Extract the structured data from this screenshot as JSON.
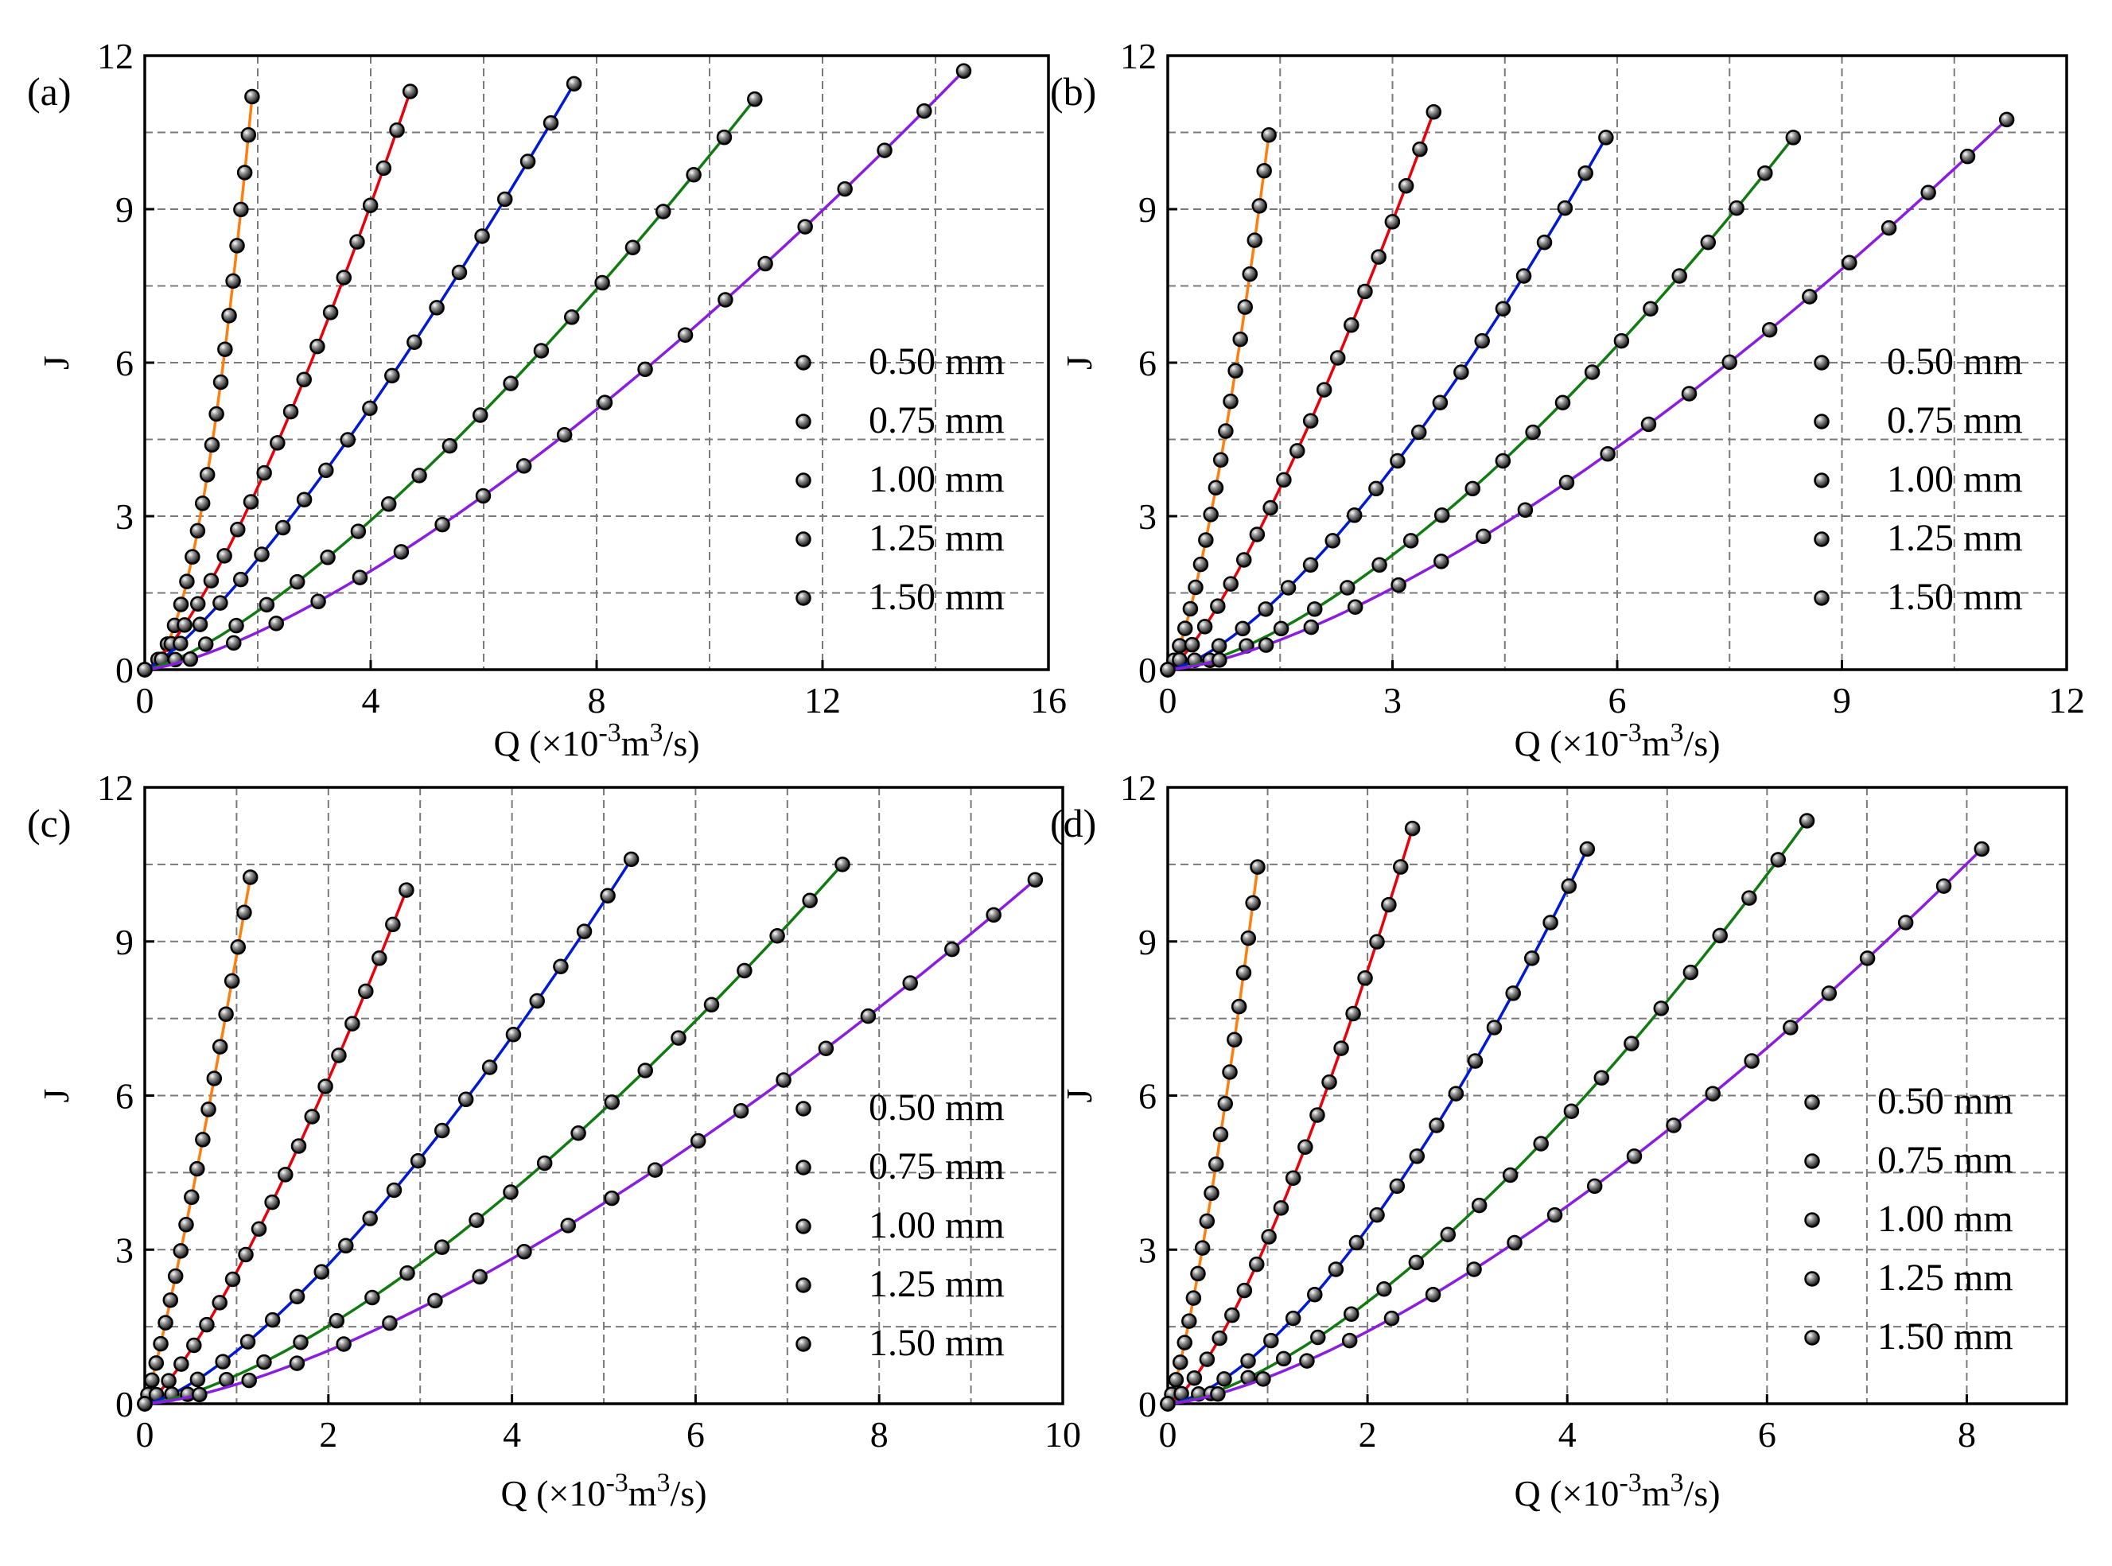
{
  "figure_title": "",
  "chart_data": [
    {
      "type": "line",
      "panel_label": "(a)",
      "title": "",
      "xlabel": "Q (×10-3m3/s)",
      "xlabel_parts": {
        "symbol": "Q (",
        "times": "×10",
        "exp1": "-3",
        "unit": "m",
        "exp2": "3",
        "tail": "/s)"
      },
      "ylabel": "J",
      "xlim": [
        0,
        16
      ],
      "ylim": [
        0,
        12
      ],
      "xticks": [
        0,
        4,
        8,
        12,
        16
      ],
      "yticks": [
        0,
        3,
        6,
        9,
        12
      ],
      "xticks_labels": [
        "0",
        "4",
        "8",
        "12",
        "16"
      ],
      "yticks_labels": [
        "0",
        "3",
        "6",
        "9",
        "12"
      ],
      "grid": true,
      "legend_position": "right",
      "legend": [
        "0.50 mm",
        "0.75 mm",
        "1.00 mm",
        "1.25 mm",
        "1.50 mm"
      ],
      "series": [
        {
          "name": "0.50 mm",
          "color": "#ff7f0e",
          "x_max": 1.9,
          "y_max": 11.2,
          "n": 2.0
        },
        {
          "name": "0.75 mm",
          "color": "#e8000b",
          "x_max": 4.7,
          "y_max": 11.3,
          "n": 1.35
        },
        {
          "name": "1.00 mm",
          "color": "#0019d6",
          "x_max": 7.6,
          "y_max": 11.45,
          "n": 1.25
        },
        {
          "name": "1.25 mm",
          "color": "#117a11",
          "x_max": 10.8,
          "y_max": 11.15,
          "n": 1.35
        },
        {
          "name": "1.50 mm",
          "color": "#8a1ee0",
          "x_max": 14.5,
          "y_max": 11.7,
          "n": 1.4
        }
      ]
    },
    {
      "type": "line",
      "panel_label": "(b)",
      "title": "",
      "xlabel": "Q (×10-3m3/s)",
      "xlabel_parts": {
        "symbol": "Q (",
        "times": "×10",
        "exp1": "-3",
        "unit": "m",
        "exp2": "3",
        "tail": "/s)"
      },
      "ylabel": "J",
      "xlim": [
        0,
        12
      ],
      "ylim": [
        0,
        12
      ],
      "xticks": [
        0,
        3,
        6,
        9,
        12
      ],
      "yticks": [
        0,
        3,
        6,
        9,
        12
      ],
      "xticks_labels": [
        "0",
        "3",
        "6",
        "9",
        "12"
      ],
      "yticks_labels": [
        "0",
        "3",
        "6",
        "9",
        "12"
      ],
      "grid": true,
      "legend_position": "right",
      "legend": [
        "0.50 mm",
        "0.75 mm",
        "1.00 mm",
        "1.25 mm",
        "1.50 mm"
      ],
      "series": [
        {
          "name": "0.50 mm",
          "color": "#ff7f0e",
          "x_max": 1.35,
          "y_max": 10.45,
          "n": 1.45
        },
        {
          "name": "0.75 mm",
          "color": "#e8000b",
          "x_max": 3.55,
          "y_max": 10.9,
          "n": 1.3
        },
        {
          "name": "1.00 mm",
          "color": "#0019d6",
          "x_max": 5.85,
          "y_max": 10.4,
          "n": 1.45
        },
        {
          "name": "1.25 mm",
          "color": "#117a11",
          "x_max": 8.35,
          "y_max": 10.4,
          "n": 1.5
        },
        {
          "name": "1.50 mm",
          "color": "#8a1ee0",
          "x_max": 11.2,
          "y_max": 10.75,
          "n": 1.45
        }
      ]
    },
    {
      "type": "line",
      "panel_label": "(c)",
      "title": "",
      "xlabel": "Q (×10-3m3/s)",
      "xlabel_parts": {
        "symbol": "Q (",
        "times": "×10",
        "exp1": "-3",
        "unit": "m",
        "exp2": "3",
        "tail": "/s)"
      },
      "ylabel": "J",
      "xlim": [
        0,
        10
      ],
      "ylim": [
        0,
        12
      ],
      "xticks": [
        0,
        2,
        4,
        6,
        8,
        10
      ],
      "yticks": [
        0,
        3,
        6,
        9,
        12
      ],
      "xticks_labels": [
        "0",
        "2",
        "4",
        "6",
        "8",
        "10"
      ],
      "yticks_labels": [
        "0",
        "3",
        "6",
        "9",
        "12"
      ],
      "grid": true,
      "legend_position": "right",
      "legend": [
        "0.50 mm",
        "0.75 mm",
        "1.00 mm",
        "1.25 mm",
        "1.50 mm"
      ],
      "series": [
        {
          "name": "0.50 mm",
          "color": "#ff7f0e",
          "x_max": 1.15,
          "y_max": 10.25,
          "n": 1.15
        },
        {
          "name": "0.75 mm",
          "color": "#e8000b",
          "x_max": 2.85,
          "y_max": 10.0,
          "n": 1.3
        },
        {
          "name": "1.00 mm",
          "color": "#0019d6",
          "x_max": 5.3,
          "y_max": 10.6,
          "n": 1.4
        },
        {
          "name": "1.25 mm",
          "color": "#117a11",
          "x_max": 7.6,
          "y_max": 10.5,
          "n": 1.45
        },
        {
          "name": "1.50 mm",
          "color": "#8a1ee0",
          "x_max": 9.7,
          "y_max": 10.2,
          "n": 1.45
        }
      ]
    },
    {
      "type": "line",
      "panel_label": "(d)",
      "title": "",
      "xlabel": "Q (×10-3m3/s)",
      "xlabel_parts": {
        "symbol": "Q (",
        "times": "×10",
        "exp1": "-3",
        "unit": "m",
        "exp2": "3",
        "tail": "/s)"
      },
      "ylabel": "J",
      "xlim": [
        0,
        9
      ],
      "ylim": [
        0,
        12
      ],
      "xticks": [
        0,
        2,
        4,
        6,
        8
      ],
      "yticks": [
        0,
        3,
        6,
        9,
        12
      ],
      "xticks_labels": [
        "0",
        "2",
        "4",
        "6",
        "8"
      ],
      "yticks_labels": [
        "0",
        "3",
        "6",
        "9",
        "12"
      ],
      "grid": true,
      "legend_position": "right",
      "legend": [
        "0.50 mm",
        "0.75 mm",
        "1.00 mm",
        "1.25 mm",
        "1.50 mm"
      ],
      "series": [
        {
          "name": "0.50 mm",
          "color": "#ff7f0e",
          "x_max": 0.9,
          "y_max": 10.45,
          "n": 1.3
        },
        {
          "name": "0.75 mm",
          "color": "#e8000b",
          "x_max": 2.45,
          "y_max": 11.2,
          "n": 1.4
        },
        {
          "name": "1.00 mm",
          "color": "#0019d6",
          "x_max": 4.2,
          "y_max": 10.8,
          "n": 1.55
        },
        {
          "name": "1.25 mm",
          "color": "#117a11",
          "x_max": 6.4,
          "y_max": 11.35,
          "n": 1.5
        },
        {
          "name": "1.50 mm",
          "color": "#8a1ee0",
          "x_max": 8.15,
          "y_max": 10.8,
          "n": 1.45
        }
      ]
    }
  ]
}
